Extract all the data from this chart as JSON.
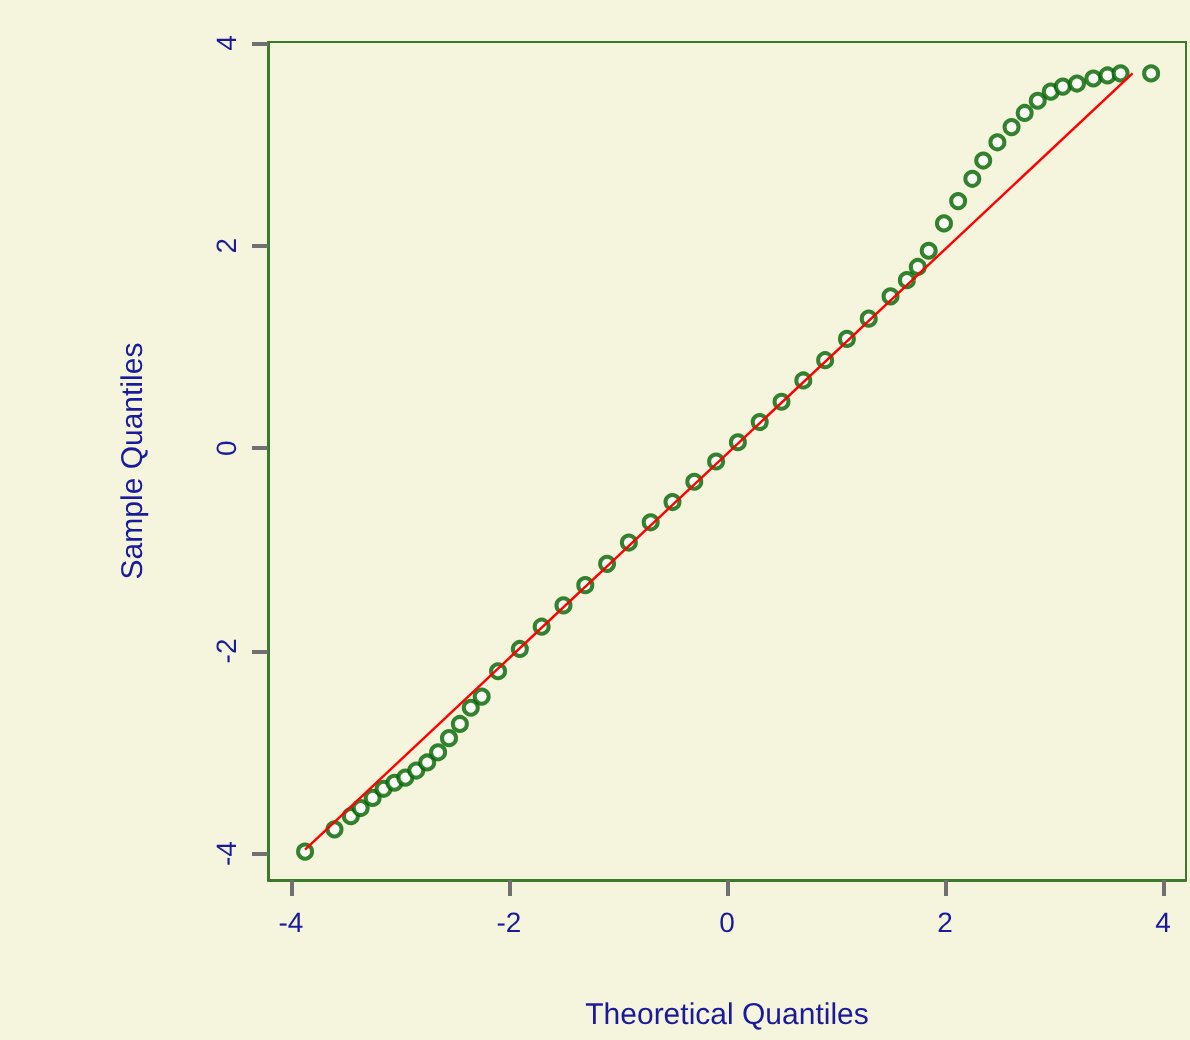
{
  "chart_data": {
    "type": "scatter",
    "xlabel": "Theoretical Quantiles",
    "ylabel": "Sample Quantiles",
    "xlim": [
      -4.21,
      4.21
    ],
    "ylim": [
      -4.26,
      4.01
    ],
    "xticks": [
      -4,
      -2,
      0,
      2,
      4
    ],
    "yticks": [
      -4,
      -2,
      0,
      2,
      4
    ],
    "grid": false,
    "series": [
      {
        "marker": "circle",
        "color": "#006400",
        "x": [
          -3.87,
          -3.6,
          -3.45,
          -3.36,
          -3.25,
          -3.15,
          -3.05,
          -2.95,
          -2.85,
          -2.75,
          -2.65,
          -2.55,
          -2.45,
          -2.35,
          -2.25,
          -2.1,
          -1.9,
          -1.7,
          -1.5,
          -1.3,
          -1.1,
          -0.9,
          -0.7,
          -0.5,
          -0.3,
          -0.1,
          0.1,
          0.3,
          0.5,
          0.7,
          0.9,
          1.1,
          1.3,
          1.5,
          1.65,
          1.75,
          1.85,
          1.99,
          2.12,
          2.25,
          2.35,
          2.48,
          2.61,
          2.73,
          2.85,
          2.97,
          3.08,
          3.21,
          3.36,
          3.49,
          3.61,
          3.89
        ],
        "values": [
          -3.98,
          -3.76,
          -3.63,
          -3.55,
          -3.45,
          -3.36,
          -3.3,
          -3.25,
          -3.18,
          -3.1,
          -3.0,
          -2.86,
          -2.72,
          -2.56,
          -2.45,
          -2.2,
          -1.98,
          -1.76,
          -1.55,
          -1.35,
          -1.14,
          -0.93,
          -0.73,
          -0.53,
          -0.33,
          -0.13,
          0.06,
          0.26,
          0.46,
          0.67,
          0.87,
          1.08,
          1.28,
          1.5,
          1.66,
          1.79,
          1.95,
          2.22,
          2.44,
          2.66,
          2.84,
          3.02,
          3.17,
          3.31,
          3.43,
          3.52,
          3.57,
          3.6,
          3.65,
          3.68,
          3.7,
          3.7
        ]
      },
      {
        "type": "line",
        "marker": "none",
        "line_style": "solid",
        "color": "#ff0000",
        "x": [
          -3.87,
          3.72
        ],
        "values": [
          -3.96,
          3.7
        ]
      }
    ]
  }
}
